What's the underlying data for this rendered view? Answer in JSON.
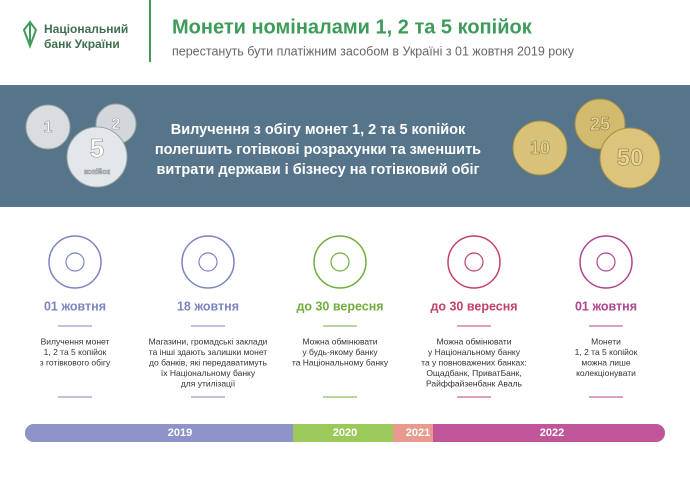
{
  "header": {
    "logo": [
      "Національний",
      "банк України"
    ],
    "title": "Монети номіналами 1, 2 та 5 копійок",
    "subtitle": "перестануть бути платіжним засобом в Україні з 01 жовтня 2019 року"
  },
  "banner": {
    "text": [
      "Вилучення з обігу монет 1, 2 та 5 копійок",
      "полегшить готівкові розрахунки та зменшить",
      "витрати держави і бізнесу на готівковий обіг"
    ],
    "coins_left": [
      "1",
      "2",
      "5",
      "копійок"
    ],
    "coins_right": [
      "10",
      "25",
      "50"
    ]
  },
  "steps": [
    {
      "date": "01 жовтня",
      "text": [
        "Вилучення монет",
        "1, 2 та 5 копійок",
        "з готівкового обігу"
      ]
    },
    {
      "date": "18 жовтня",
      "text": [
        "Магазини, громадські заклади",
        "та інші здають залишки монет",
        "до банків, які передаватимуть",
        "їх Національному банку",
        "для утилізації"
      ]
    },
    {
      "date": "до 30 вересня",
      "text": [
        "Можна обмінювати",
        "у будь-якому банку",
        "та Національному банку"
      ]
    },
    {
      "date": "до 30 вересня",
      "text": [
        "Можна обмінювати",
        "у Національному банку",
        "та у повноважених банках:",
        "Ощадбанк, ПриватБанк,",
        "Райффайзенбанк Аваль"
      ]
    },
    {
      "date": "01 жовтня",
      "text": [
        "Монети",
        "1, 2 та 5 копійок",
        "можна лише",
        "колекціонувати"
      ]
    }
  ],
  "timeline": [
    "2019",
    "2020",
    "2021",
    "2022"
  ]
}
